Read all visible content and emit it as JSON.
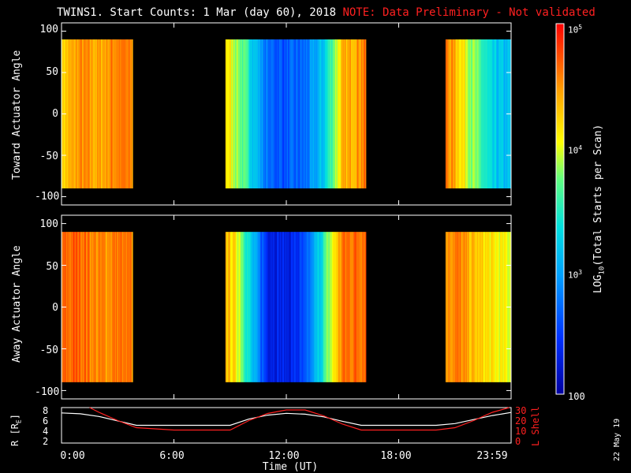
{
  "title": {
    "main": "TWINS1. Start Counts:  1 Mar (day  60), 2018",
    "note": "NOTE: Data Preliminary - Not validated"
  },
  "panels": [
    {
      "ylabel": "Toward Actuator Angle",
      "yticks": [
        "100",
        "50",
        "0",
        "-50",
        "-100"
      ]
    },
    {
      "ylabel": "Away Actuator Angle",
      "yticks": [
        "100",
        "50",
        "0",
        "-50",
        "-100"
      ]
    }
  ],
  "orbit": {
    "left_label": "R [R",
    "left_label_sub": "E",
    "left_label_close": "]",
    "right_label": "L Shell",
    "left_ticks": [
      "8",
      "6",
      "4",
      "2"
    ],
    "right_ticks": [
      "30",
      "20",
      "10",
      "0"
    ]
  },
  "xaxis": {
    "ticks": [
      "0:00",
      "6:00",
      "12:00",
      "18:00",
      "23:59"
    ],
    "label": "Time (UT)"
  },
  "colorbar": {
    "label": "LOG",
    "label_sub": "10",
    "label_rest": "(Total Starts per Scan)",
    "ticks": [
      {
        "base": "10",
        "exp": "5"
      },
      {
        "base": "10",
        "exp": "4"
      },
      {
        "base": "10",
        "exp": "3"
      },
      {
        "base": "100",
        "exp": ""
      }
    ]
  },
  "date_stamp": "22 May 19",
  "colors": {
    "note": "#ff2020",
    "r_line": "#ffffff",
    "lshell_line": "#ff2020",
    "background": "#000000"
  },
  "chart_data": [
    {
      "type": "heatmap",
      "ylabel": "Toward Actuator Angle",
      "xlabel": "",
      "xlim": [
        0,
        24
      ],
      "ylim": [
        -110,
        110
      ],
      "y_data_range": [
        -90,
        90
      ],
      "value_scale": "log10",
      "value_range": [
        100,
        100000
      ],
      "x_segments": [
        [
          0,
          3.8
        ],
        [
          8.75,
          16.25
        ],
        [
          20.5,
          24
        ]
      ],
      "profile_hours": [
        0,
        1,
        2,
        3,
        3.8,
        8.75,
        9.5,
        10.2,
        11,
        12,
        13,
        14,
        15,
        16.25,
        20.5,
        21,
        22,
        23,
        24
      ],
      "profile_log_counts": [
        4.2,
        4.5,
        4.4,
        4.6,
        4.5,
        4.2,
        3.8,
        3.3,
        2.7,
        2.6,
        2.7,
        3.2,
        4.3,
        4.6,
        4.6,
        4.4,
        3.8,
        3.2,
        3.1
      ]
    },
    {
      "type": "heatmap",
      "ylabel": "Away Actuator Angle",
      "xlabel": "",
      "xlim": [
        0,
        24
      ],
      "ylim": [
        -110,
        110
      ],
      "y_data_range": [
        -90,
        90
      ],
      "value_scale": "log10",
      "value_range": [
        100,
        100000
      ],
      "x_segments": [
        [
          0,
          3.8
        ],
        [
          8.75,
          16.25
        ],
        [
          20.5,
          24
        ]
      ],
      "profile_hours": [
        0,
        1,
        2,
        3,
        3.8,
        8.75,
        9.5,
        10.2,
        11,
        12,
        13,
        14,
        15,
        16.25,
        20.5,
        21,
        22,
        23,
        24
      ],
      "profile_log_counts": [
        4.6,
        4.7,
        4.5,
        4.6,
        4.5,
        4.4,
        4.0,
        3.1,
        2.4,
        2.3,
        2.5,
        3.5,
        4.6,
        4.7,
        4.5,
        4.6,
        4.3,
        4.1,
        4.0
      ]
    },
    {
      "type": "line",
      "xlabel": "Time (UT)",
      "ylabel": "R [RE]",
      "xlim": [
        0,
        24
      ],
      "ylim": [
        1,
        9
      ],
      "y2label": "L Shell",
      "y2lim": [
        0,
        30
      ],
      "series": [
        {
          "axis": "left",
          "x": [
            0,
            1,
            2,
            3,
            4,
            6,
            8,
            9,
            10,
            11,
            12,
            13,
            14,
            15,
            16,
            18,
            20,
            21,
            22,
            23,
            24
          ],
          "y": [
            7.8,
            7.6,
            7.0,
            6.0,
            5.0,
            5.0,
            5.0,
            5.0,
            6.4,
            7.3,
            7.7,
            7.5,
            6.9,
            5.9,
            5.0,
            5.0,
            5.0,
            5.4,
            6.3,
            7.2,
            7.9
          ]
        },
        {
          "axis": "right",
          "x": [
            1.5,
            2,
            3,
            4,
            5,
            6,
            8,
            9,
            10,
            11,
            12,
            13,
            14,
            15,
            16,
            18,
            20,
            21,
            22,
            23,
            23.9
          ],
          "y": [
            30,
            26,
            19,
            13,
            12,
            11,
            11,
            11,
            19,
            25,
            28,
            28,
            23,
            16,
            11,
            11,
            11,
            13,
            19,
            26,
            30
          ]
        }
      ]
    }
  ]
}
